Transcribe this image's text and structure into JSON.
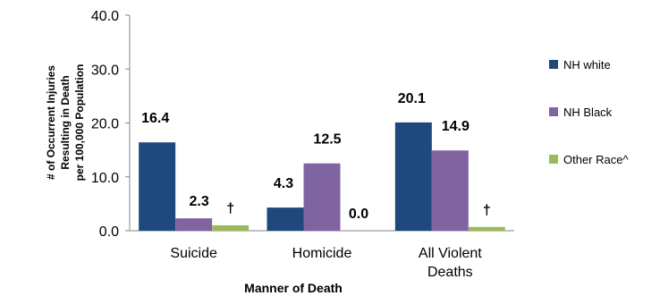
{
  "chart_data": {
    "type": "bar",
    "categories": [
      [
        "Suicide"
      ],
      [
        "Homicide"
      ],
      [
        "All Violent",
        "Deaths"
      ]
    ],
    "series": [
      {
        "name": "NH white",
        "color": "#1F497D",
        "values": [
          16.4,
          4.3,
          20.1
        ],
        "labels": [
          "16.4",
          "4.3",
          "20.1"
        ]
      },
      {
        "name": "NH Black",
        "color": "#8064A2",
        "values": [
          2.3,
          12.5,
          14.9
        ],
        "labels": [
          "2.3",
          "12.5",
          "14.9"
        ]
      },
      {
        "name": "Other Race^",
        "color": "#9BBB59",
        "values": [
          1.0,
          0.0,
          0.7
        ],
        "labels": [
          "†",
          "0.0",
          "†"
        ]
      }
    ],
    "xlabel": "Manner of Death",
    "ylabel": [
      "# of Occurrent Injuries",
      "Resulting in Death",
      "per 100,000 Population"
    ],
    "ylim": [
      0,
      40
    ],
    "yticks": [
      "0.0",
      "10.0",
      "20.0",
      "30.0",
      "40.0"
    ],
    "grid": false,
    "legend_position": "right"
  }
}
